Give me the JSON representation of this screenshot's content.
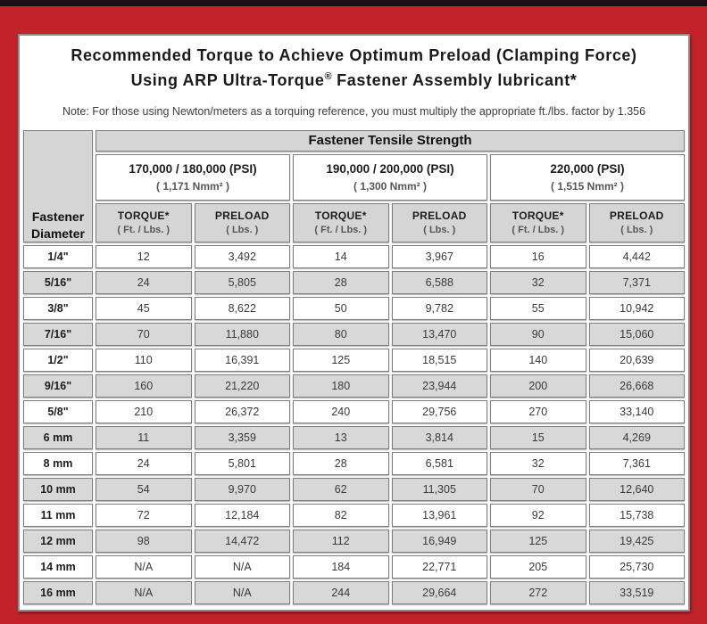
{
  "frame": {
    "border_color": "#c2232a",
    "top_strip_color": "#171115"
  },
  "title": {
    "line1": "Recommended Torque to Achieve Optimum Preload (Clamping Force)",
    "line2_pre": "Using ARP Ultra-Torque",
    "line2_sup": "®",
    "line2_post": " Fastener Assembly lubricant*"
  },
  "note": "Note: For those using Newton/meters as a torquing reference, you must multiply the appropriate ft./lbs. factor by 1.356",
  "table": {
    "tensile_header": "Fastener Tensile Strength",
    "corner_header": {
      "line1": "Fastener",
      "line2": "Diameter"
    },
    "groups": [
      {
        "psi": "170,000 / 180,000 (PSI)",
        "nmm": "( 1,171 Nmm² )"
      },
      {
        "psi": "190,000 / 200,000 (PSI)",
        "nmm": "( 1,300 Nmm² )"
      },
      {
        "psi": "220,000 (PSI)",
        "nmm": "( 1,515 Nmm² )"
      }
    ],
    "col_headers": {
      "torque": "TORQUE*",
      "torque_sub": "( Ft. / Lbs. )",
      "preload": "PRELOAD",
      "preload_sub": "( Lbs. )"
    },
    "rows": [
      {
        "d": "1/4\"",
        "v": [
          "12",
          "3,492",
          "14",
          "3,967",
          "16",
          "4,442"
        ]
      },
      {
        "d": "5/16\"",
        "v": [
          "24",
          "5,805",
          "28",
          "6,588",
          "32",
          "7,371"
        ]
      },
      {
        "d": "3/8\"",
        "v": [
          "45",
          "8,622",
          "50",
          "9,782",
          "55",
          "10,942"
        ]
      },
      {
        "d": "7/16\"",
        "v": [
          "70",
          "11,880",
          "80",
          "13,470",
          "90",
          "15,060"
        ]
      },
      {
        "d": "1/2\"",
        "v": [
          "110",
          "16,391",
          "125",
          "18,515",
          "140",
          "20,639"
        ]
      },
      {
        "d": "9/16\"",
        "v": [
          "160",
          "21,220",
          "180",
          "23,944",
          "200",
          "26,668"
        ]
      },
      {
        "d": "5/8\"",
        "v": [
          "210",
          "26,372",
          "240",
          "29,756",
          "270",
          "33,140"
        ]
      },
      {
        "d": "6 mm",
        "v": [
          "11",
          "3,359",
          "13",
          "3,814",
          "15",
          "4,269"
        ]
      },
      {
        "d": "8 mm",
        "v": [
          "24",
          "5,801",
          "28",
          "6,581",
          "32",
          "7,361"
        ]
      },
      {
        "d": "10 mm",
        "v": [
          "54",
          "9,970",
          "62",
          "11,305",
          "70",
          "12,640"
        ]
      },
      {
        "d": "11 mm",
        "v": [
          "72",
          "12,184",
          "82",
          "13,961",
          "92",
          "15,738"
        ]
      },
      {
        "d": "12 mm",
        "v": [
          "98",
          "14,472",
          "112",
          "16,949",
          "125",
          "19,425"
        ]
      },
      {
        "d": "14 mm",
        "v": [
          "N/A",
          "N/A",
          "184",
          "22,771",
          "205",
          "25,730"
        ]
      },
      {
        "d": "16 mm",
        "v": [
          "N/A",
          "N/A",
          "244",
          "29,664",
          "272",
          "33,519"
        ]
      }
    ]
  },
  "chart_data": {
    "type": "table",
    "title": "Recommended Torque to Achieve Optimum Preload (Clamping Force) Using ARP Ultra-Torque Fastener Assembly lubricant*",
    "columns": [
      "Fastener Diameter",
      "170/180k PSI Torque (Ft./Lbs.)",
      "170/180k PSI Preload (Lbs.)",
      "190/200k PSI Torque (Ft./Lbs.)",
      "190/200k PSI Preload (Lbs.)",
      "220k PSI Torque (Ft./Lbs.)",
      "220k PSI Preload (Lbs.)"
    ],
    "rows": [
      [
        "1/4\"",
        "12",
        "3,492",
        "14",
        "3,967",
        "16",
        "4,442"
      ],
      [
        "5/16\"",
        "24",
        "5,805",
        "28",
        "6,588",
        "32",
        "7,371"
      ],
      [
        "3/8\"",
        "45",
        "8,622",
        "50",
        "9,782",
        "55",
        "10,942"
      ],
      [
        "7/16\"",
        "70",
        "11,880",
        "80",
        "13,470",
        "90",
        "15,060"
      ],
      [
        "1/2\"",
        "110",
        "16,391",
        "125",
        "18,515",
        "140",
        "20,639"
      ],
      [
        "9/16\"",
        "160",
        "21,220",
        "180",
        "23,944",
        "200",
        "26,668"
      ],
      [
        "5/8\"",
        "210",
        "26,372",
        "240",
        "29,756",
        "270",
        "33,140"
      ],
      [
        "6 mm",
        "11",
        "3,359",
        "13",
        "3,814",
        "15",
        "4,269"
      ],
      [
        "8 mm",
        "24",
        "5,801",
        "28",
        "6,581",
        "32",
        "7,361"
      ],
      [
        "10 mm",
        "54",
        "9,970",
        "62",
        "11,305",
        "70",
        "12,640"
      ],
      [
        "11 mm",
        "72",
        "12,184",
        "82",
        "13,961",
        "92",
        "15,738"
      ],
      [
        "12 mm",
        "98",
        "14,472",
        "112",
        "16,949",
        "125",
        "19,425"
      ],
      [
        "14 mm",
        "N/A",
        "N/A",
        "184",
        "22,771",
        "205",
        "25,730"
      ],
      [
        "16 mm",
        "N/A",
        "N/A",
        "244",
        "29,664",
        "272",
        "33,519"
      ]
    ]
  }
}
